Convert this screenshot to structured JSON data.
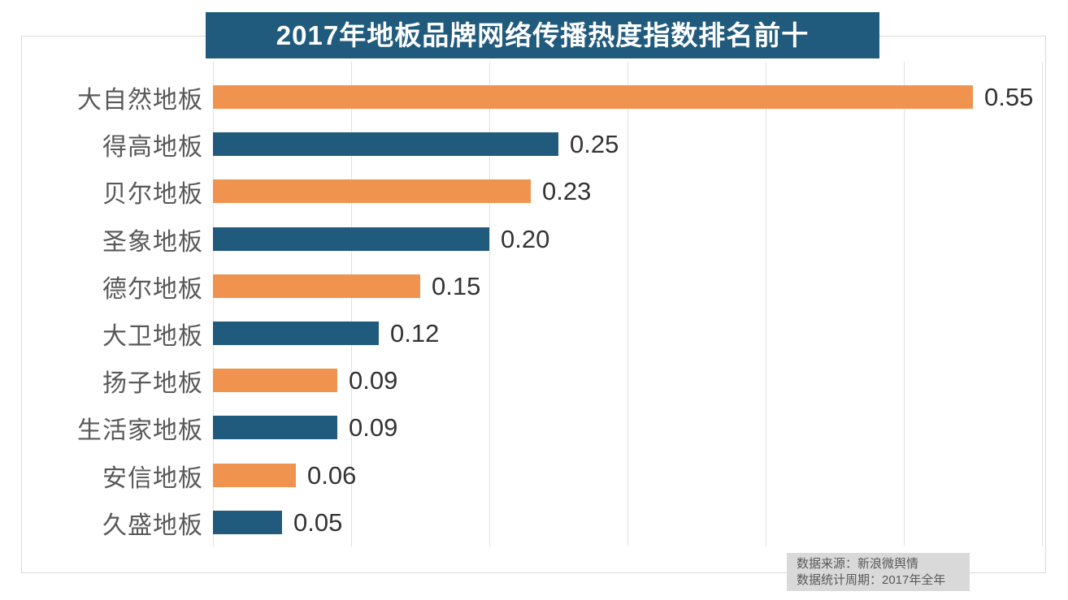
{
  "chart": {
    "title": "2017年地板品牌网络传播热度指数排名前十"
  },
  "footer": {
    "source": "数据来源：新浪微舆情",
    "period": "数据统计周期：2017年全年"
  },
  "colors": {
    "banner_bg": "#205b7d",
    "bar_orange": "#f0934e",
    "bar_teal": "#205b7d",
    "gridline": "#e1e1e1",
    "frame_border": "#d9d9d9",
    "category_text": "#595959",
    "value_text": "#333333",
    "title_text": "#ffffff",
    "footer_bg": "#d9d9d9",
    "footer_text": "#595959"
  },
  "chart_data": {
    "type": "bar",
    "orientation": "horizontal",
    "title": "2017年地板品牌网络传播热度指数排名前十",
    "categories": [
      "大自然地板",
      "得高地板",
      "贝尔地板",
      "圣象地板",
      "德尔地板",
      "大卫地板",
      "扬子地板",
      "生活家地板",
      "安信地板",
      "久盛地板"
    ],
    "values": [
      0.55,
      0.25,
      0.23,
      0.2,
      0.15,
      0.12,
      0.09,
      0.09,
      0.06,
      0.05
    ],
    "value_labels": [
      "0.55",
      "0.25",
      "0.23",
      "0.20",
      "0.15",
      "0.12",
      "0.09",
      "0.09",
      "0.06",
      "0.05"
    ],
    "xlabel": "",
    "ylabel": "",
    "xlim": [
      0,
      0.6
    ],
    "grid_step": 0.1,
    "grid": true,
    "legend": false,
    "x_tick_labels_visible": false,
    "bar_colors_alternating": [
      "#f0934e",
      "#205b7d"
    ],
    "source_note": [
      "数据来源：新浪微舆情",
      "数据统计周期：2017年全年"
    ]
  }
}
